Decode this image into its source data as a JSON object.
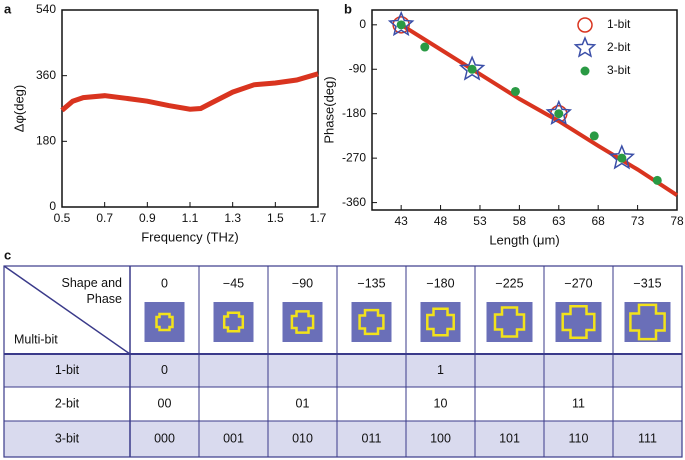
{
  "panels": [
    "a",
    "b",
    "c"
  ],
  "chart_data": [
    {
      "type": "line",
      "xlabel": "Frequency (THz)",
      "ylabel": "Δφ(deg)",
      "xlim": [
        0.5,
        1.7
      ],
      "ylim": [
        0,
        540
      ],
      "xticks": [
        0.5,
        0.7,
        0.9,
        1.1,
        1.3,
        1.5,
        1.7
      ],
      "yticks": [
        0,
        180,
        360,
        540
      ],
      "series": [
        {
          "color": "#d9341f",
          "x": [
            0.5,
            0.55,
            0.6,
            0.7,
            0.8,
            0.9,
            1.0,
            1.1,
            1.15,
            1.2,
            1.3,
            1.4,
            1.5,
            1.6,
            1.7
          ],
          "values": [
            265,
            290,
            300,
            305,
            298,
            290,
            278,
            268,
            270,
            285,
            315,
            335,
            340,
            348,
            365
          ]
        }
      ]
    },
    {
      "type": "scatter",
      "xlabel": "Length (μm)",
      "ylabel": "Phase(deg)",
      "xlim": [
        39.3,
        78
      ],
      "ylim": [
        -375,
        30
      ],
      "xticks": [
        43,
        48,
        53,
        58,
        63,
        68,
        73,
        78
      ],
      "yticks": [
        0,
        -90,
        -180,
        -270,
        -360
      ],
      "legend": "upper right",
      "series": [
        {
          "marker": "line",
          "color": "#d9341f",
          "x": [
            43,
            48,
            53,
            58,
            63,
            68,
            73,
            78
          ],
          "values": [
            0,
            -50,
            -100,
            -150,
            -195,
            -245,
            -293,
            -345
          ]
        },
        {
          "name": "1-bit",
          "marker": "circle",
          "color": "#d9341f",
          "x": [
            43,
            63
          ],
          "values": [
            0,
            -180
          ]
        },
        {
          "name": "2-bit",
          "marker": "star",
          "color": "#3b4fa8",
          "x": [
            43,
            52,
            63,
            71
          ],
          "values": [
            0,
            -90,
            -180,
            -270
          ]
        },
        {
          "name": "3-bit",
          "marker": "dot",
          "color": "#2a9a44",
          "x": [
            43,
            46,
            52,
            57.5,
            63,
            67.5,
            71,
            75.5
          ],
          "values": [
            0,
            -45,
            -90,
            -135,
            -180,
            -225,
            -270,
            -315
          ]
        }
      ]
    }
  ],
  "table": {
    "corner_top": "Shape and Phase",
    "corner_bottom": "Multi-bit",
    "columns": [
      "0",
      "−45",
      "−90",
      "−135",
      "−180",
      "−225",
      "−270",
      "−315"
    ],
    "rows": [
      [
        "1-bit",
        "0",
        null,
        null,
        null,
        "1",
        null,
        null,
        null
      ],
      [
        "2-bit",
        "00",
        null,
        "01",
        null,
        "10",
        null,
        "11",
        null
      ],
      [
        "3-bit",
        "000",
        "001",
        "010",
        "011",
        "100",
        "101",
        "110",
        "111"
      ]
    ]
  }
}
